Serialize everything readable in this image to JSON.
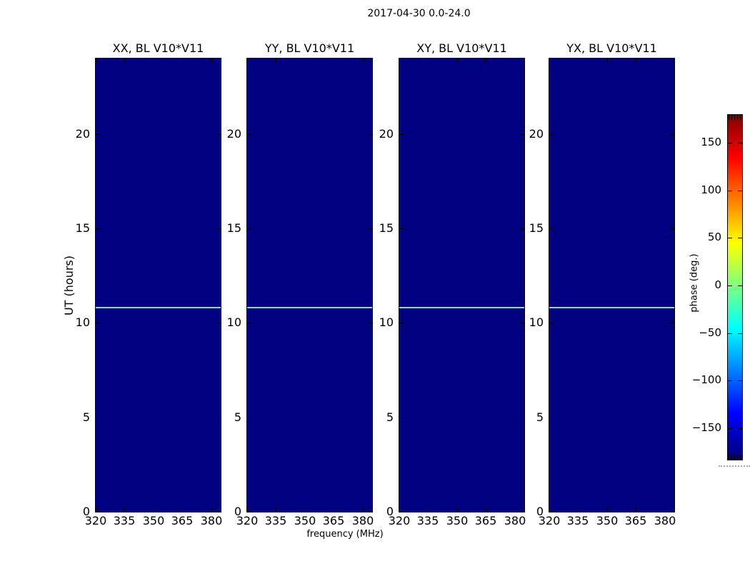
{
  "figure": {
    "suptitle": "2017-04-30 0.0-24.0",
    "background_color": "#ffffff"
  },
  "chart_data": {
    "type": "heatmap",
    "title": "2017-04-30 0.0-24.0",
    "xlabel": "frequency (MHz)",
    "ylabel": "UT (hours)",
    "panels": [
      {
        "title": "XX, BL V10*V11"
      },
      {
        "title": "YY, BL V10*V11"
      },
      {
        "title": "XY, BL V10*V11"
      },
      {
        "title": "YX, BL V10*V11"
      }
    ],
    "x_range_mhz": [
      320,
      385
    ],
    "x_ticks": [
      320,
      335,
      350,
      365,
      380
    ],
    "x_tick_labels": [
      "320",
      "335",
      "350",
      "365",
      "380"
    ],
    "y_range_hours": [
      0,
      24
    ],
    "y_ticks": [
      0,
      5,
      10,
      15,
      20
    ],
    "y_tick_labels": [
      "0",
      "5",
      "10",
      "15",
      "20"
    ],
    "colormap": "jet",
    "colormap_stops": [
      "#000080",
      "#0000ff",
      "#00ffff",
      "#ffff00",
      "#ff0000",
      "#800000"
    ],
    "colorbar": {
      "label": "phase (deg.)",
      "ticks": [
        150,
        100,
        50,
        0,
        -50,
        -100,
        -150
      ],
      "tick_labels": [
        "150",
        "100",
        "50",
        "0",
        "−50",
        "−100",
        "−150"
      ],
      "range_deg": [
        -180,
        180
      ]
    },
    "values_summary": {
      "background_phase_deg": -180,
      "background_color": "#000080",
      "feature": {
        "type": "horizontal-line",
        "ut_hours": 10.8,
        "phase_deg": 15,
        "color": "#7de89d",
        "extent": "spans full frequency range in all four panels"
      }
    }
  }
}
